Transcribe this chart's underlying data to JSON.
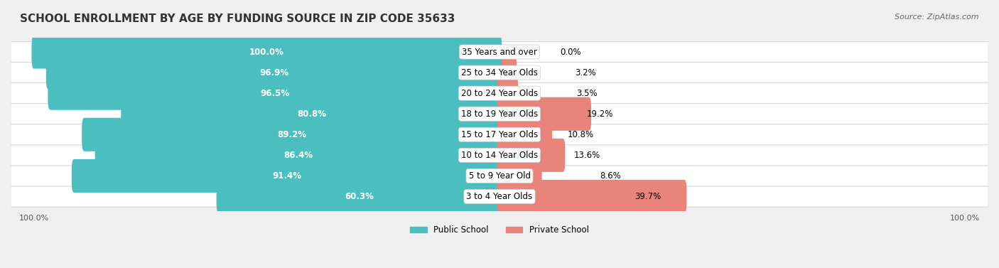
{
  "title": "SCHOOL ENROLLMENT BY AGE BY FUNDING SOURCE IN ZIP CODE 35633",
  "source": "Source: ZipAtlas.com",
  "categories": [
    "3 to 4 Year Olds",
    "5 to 9 Year Old",
    "10 to 14 Year Olds",
    "15 to 17 Year Olds",
    "18 to 19 Year Olds",
    "20 to 24 Year Olds",
    "25 to 34 Year Olds",
    "35 Years and over"
  ],
  "public_values": [
    60.3,
    91.4,
    86.4,
    89.2,
    80.8,
    96.5,
    96.9,
    100.0
  ],
  "private_values": [
    39.7,
    8.6,
    13.6,
    10.8,
    19.2,
    3.5,
    3.2,
    0.0
  ],
  "public_color": "#4bbfbf",
  "private_color": "#e8847a",
  "public_label": "Public School",
  "private_label": "Private School",
  "bg_color": "#f0f0f0",
  "bar_bg_color": "#e8e8e8",
  "row_bg_color": "#f7f7f7",
  "title_fontsize": 11,
  "label_fontsize": 8.5,
  "tick_fontsize": 8,
  "source_fontsize": 8
}
